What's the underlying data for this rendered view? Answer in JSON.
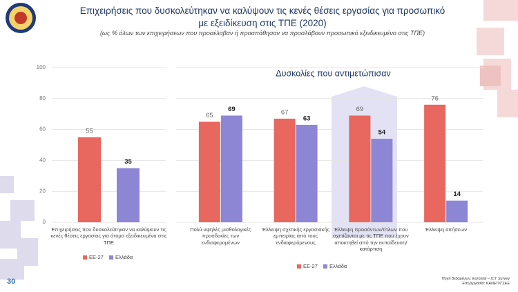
{
  "title": "Επιχειρήσεις που δυσκολεύτηκαν να καλύψουν τις κενές θέσεις εργασίας για προσωπικό με εξειδίκευση στις ΤΠΕ (2020)",
  "subtitle": "(ως % όλων των επιχειρήσεων που προσέλαβαν ή προσπάθησαν να προσλάβουν προσωπικό εξειδικευμένο στις ΤΠΕ)",
  "page_number": "30",
  "source": [
    "Πηγή δεδομένων: Eurostat – ICT Survey",
    "Επεξεργασία: ΚΑΝΕΠ/ΓΣΕΕ"
  ],
  "chart_data": [
    {
      "type": "bar",
      "categories": [
        "Επιχειρήσεις που δυσκολεύτηκαν να καλύψουν τις κενές θέσεις εργασίας για άτομα εξειδικευμένα στις ΤΠΕ"
      ],
      "series": [
        {
          "name": "ΕΕ-27",
          "color": "#e8675f",
          "values": [
            55
          ]
        },
        {
          "name": "Ελλάδα",
          "color": "#8d86d4",
          "values": [
            35
          ]
        }
      ],
      "ylim": [
        0,
        100
      ],
      "yticks": [
        0,
        20,
        40,
        60,
        80,
        100
      ],
      "grid": true
    },
    {
      "type": "bar",
      "title": "Δυσκολίες που αντιμετώπισαν",
      "categories": [
        "Πολύ υψηλές μισθολογικές προσδοκίες των ενδιαφερομένων",
        "Έλλειψη σχετικής εργασιακής εμπειρίας από τους ενδιαφερόμενους",
        "Έλλειψη προσόντων/τίτλων που σχετίζονται με τις ΤΠΕ που έχουν αποκτηθεί από την εκπαίδευση/κατάρτιση",
        "Έλλειψη αιτήσεων"
      ],
      "series": [
        {
          "name": "ΕΕ-27",
          "color": "#e8675f",
          "values": [
            65,
            67,
            69,
            76
          ]
        },
        {
          "name": "Ελλάδα",
          "color": "#8d86d4",
          "values": [
            69,
            63,
            54,
            14
          ]
        }
      ],
      "ylim": [
        0,
        100
      ],
      "grid": true
    }
  ]
}
